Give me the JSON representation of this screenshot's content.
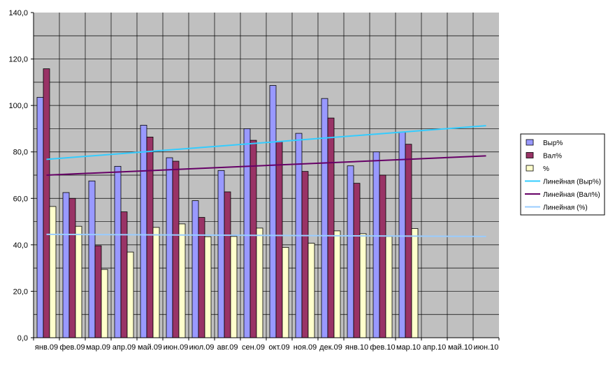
{
  "chart_data": {
    "type": "bar",
    "categories": [
      "янв.09",
      "фев.09",
      "мар.09",
      "апр.09",
      "май.09",
      "июн.09",
      "июл.09",
      "авг.09",
      "сен.09",
      "окт.09",
      "ноя.09",
      "дек.09",
      "янв.10",
      "фев.10",
      "мар.10",
      "апр.10",
      "май.10",
      "июн.10"
    ],
    "series": [
      {
        "name": "Выр%",
        "color": "#9999ff",
        "values": [
          103.5,
          62.5,
          67.5,
          73.8,
          91.5,
          77.5,
          59.0,
          72.0,
          90.0,
          108.6,
          88.0,
          103.0,
          74.0,
          80.0,
          88.5,
          null,
          null,
          null
        ]
      },
      {
        "name": "Вал%",
        "color": "#993366",
        "values": [
          115.8,
          60.0,
          39.6,
          54.2,
          86.4,
          76.0,
          51.8,
          62.8,
          85.0,
          84.5,
          71.6,
          94.6,
          66.5,
          70.0,
          83.3,
          null,
          null,
          null
        ]
      },
      {
        "name": "%",
        "color": "#ffffcc",
        "values": [
          56.5,
          48.0,
          29.4,
          36.9,
          47.5,
          49.0,
          43.5,
          43.6,
          47.2,
          38.9,
          40.7,
          46.0,
          44.8,
          43.6,
          47.0,
          null,
          null,
          null
        ]
      }
    ],
    "trendlines": [
      {
        "name": "Линейная  (Выр%)",
        "color": "#33ccff",
        "start": 76.8,
        "end": 91.3
      },
      {
        "name": "Линейная  (Вал%)",
        "color": "#660066",
        "start": 70.0,
        "end": 78.3
      },
      {
        "name": "Линейная  (%)",
        "color": "#99ccff",
        "start": 44.5,
        "end": 43.6
      }
    ],
    "yticks": [
      "0,0",
      "20,0",
      "40,0",
      "60,0",
      "80,0",
      "100,0",
      "120,0",
      "140,0"
    ],
    "ylim": [
      0,
      140
    ],
    "ystep": 20,
    "minor_step": 10,
    "plot_background": "#c0c0c0",
    "grid": true,
    "legend_position": "right"
  }
}
